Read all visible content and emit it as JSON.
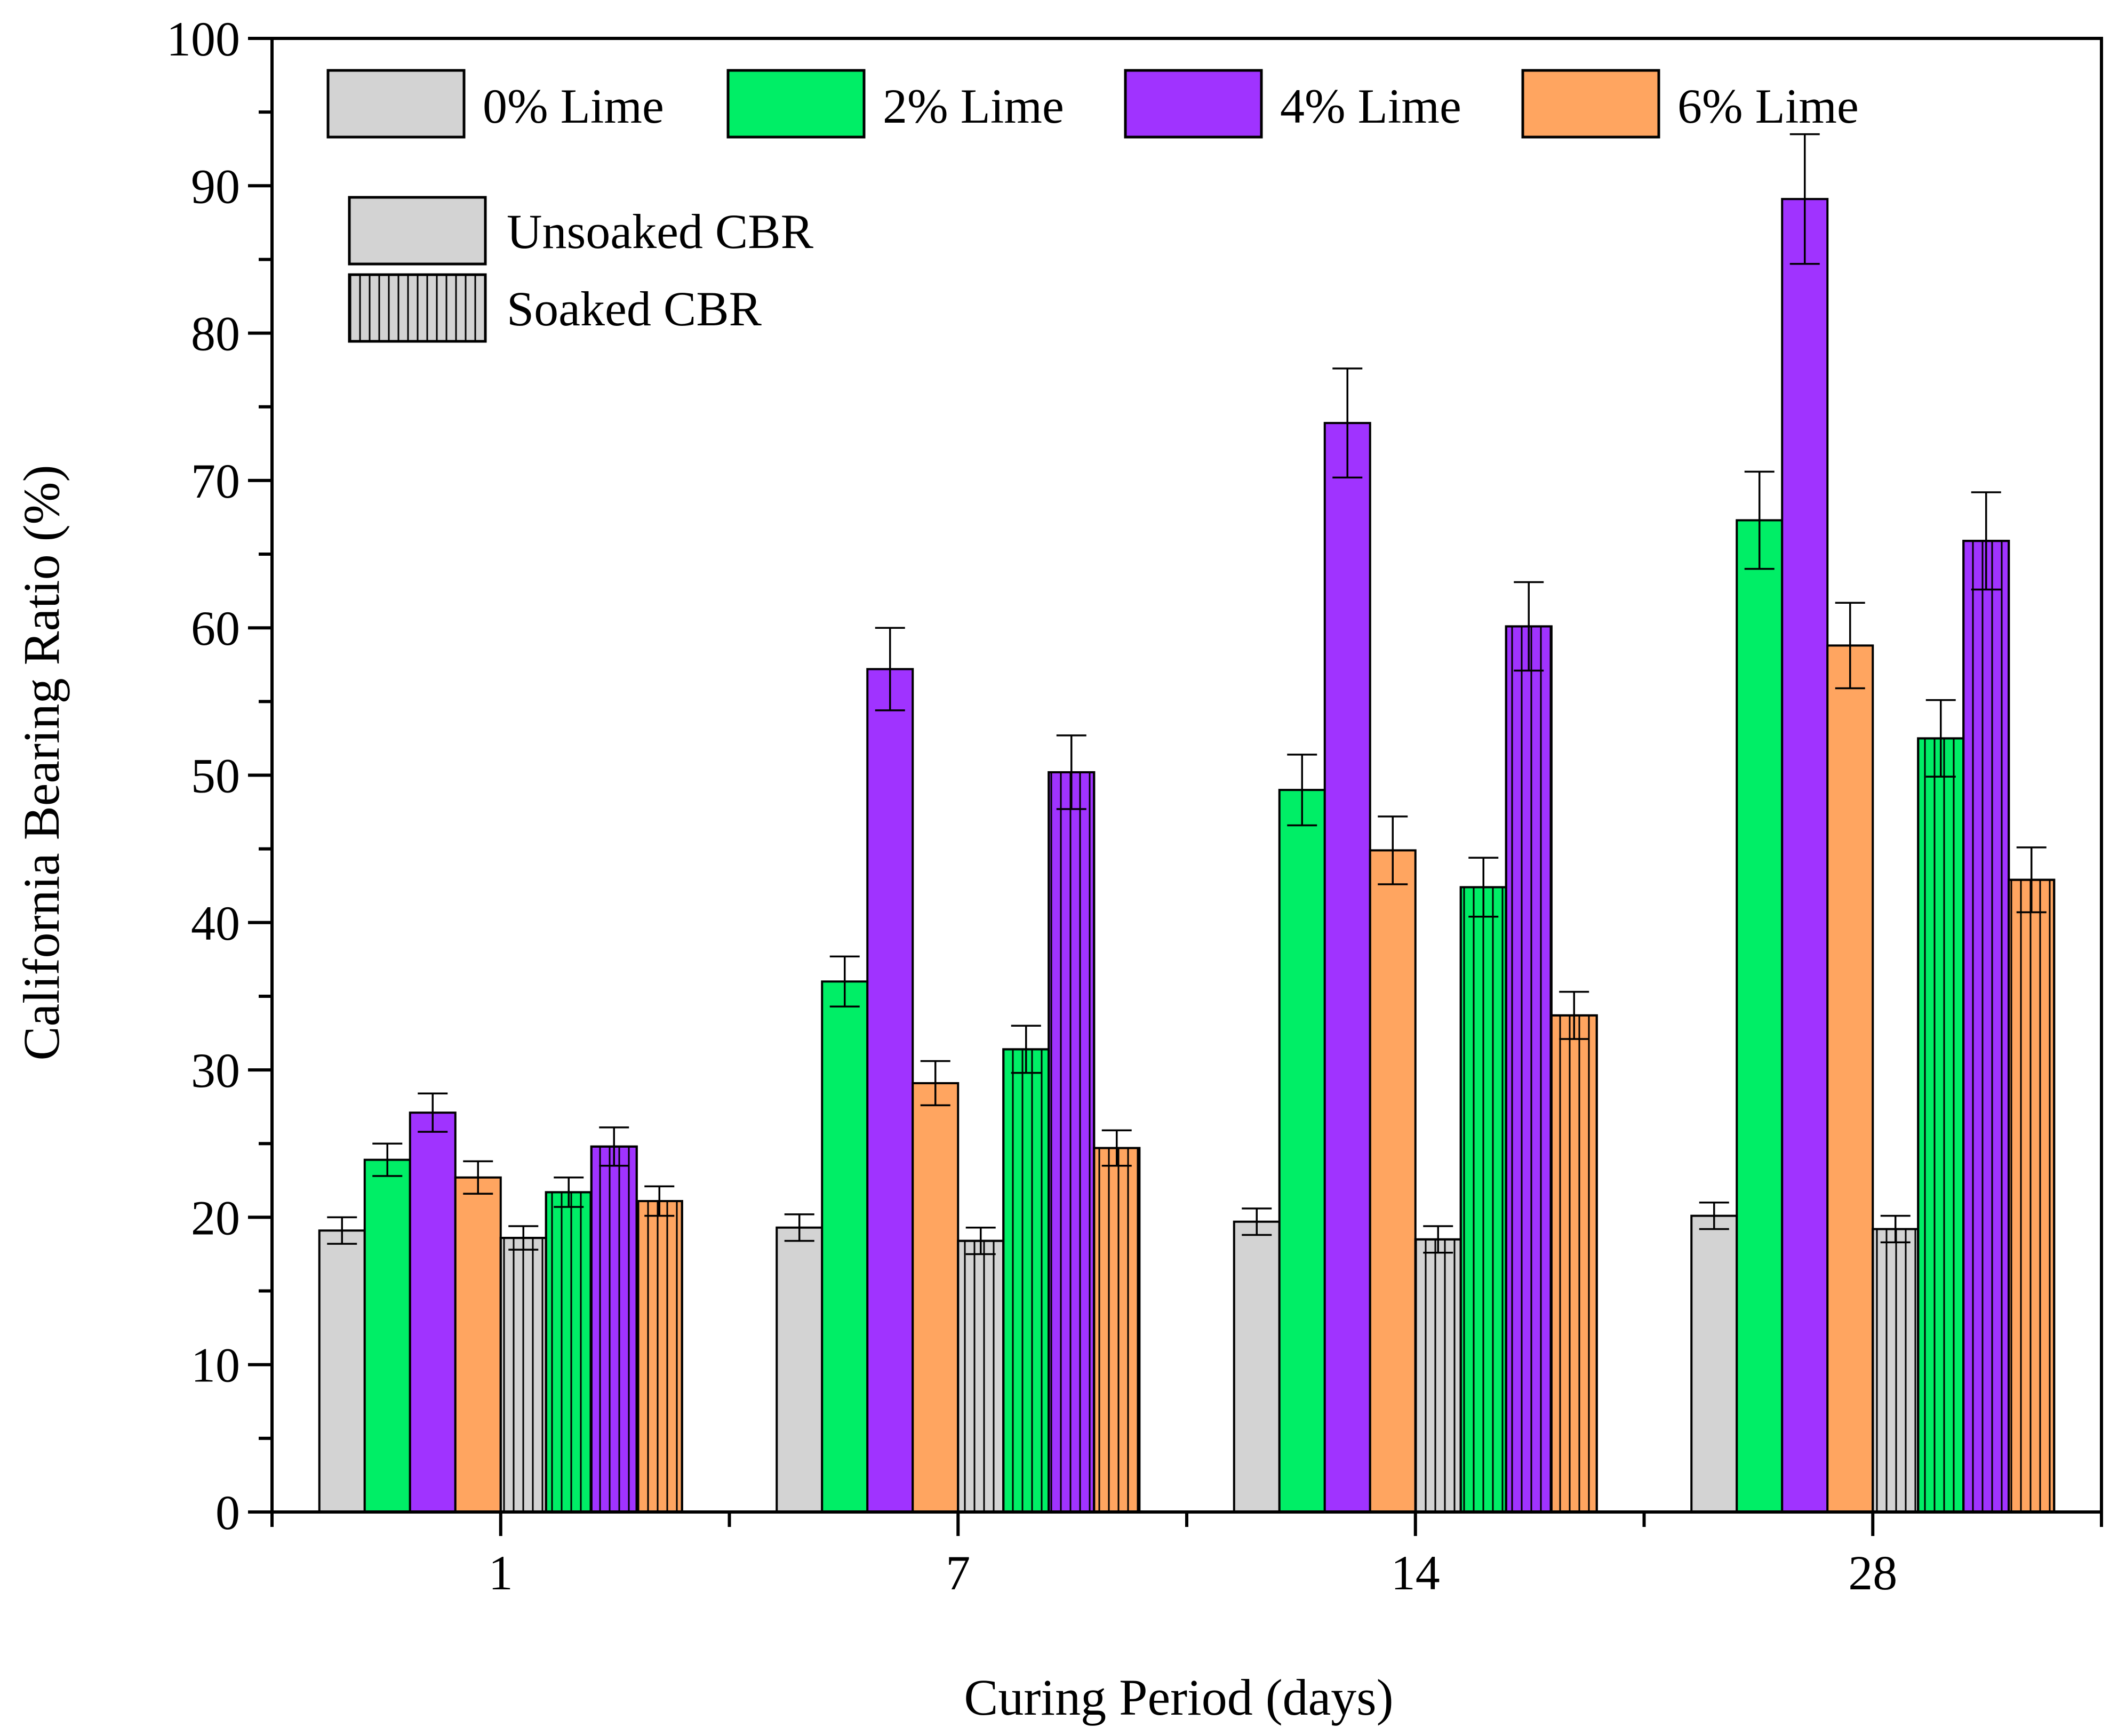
{
  "chart_data": {
    "type": "bar",
    "xlabel": "Curing Period (days)",
    "ylabel": "California Bearing Ratio (%)",
    "ylim": [
      0,
      100
    ],
    "y_ticks": [
      0,
      10,
      20,
      30,
      40,
      50,
      60,
      70,
      80,
      90,
      100
    ],
    "categories": [
      "1",
      "7",
      "14",
      "28"
    ],
    "groups": [
      {
        "name": "Unsoaked CBR",
        "pattern": "solid",
        "series": [
          {
            "name": "0% Lime",
            "color": "#D3D3D3",
            "values": [
              19.1,
              19.3,
              19.7,
              20.1
            ],
            "errors": [
              0.9,
              0.9,
              0.9,
              0.9
            ]
          },
          {
            "name": "2% Lime",
            "color": "#00EE66",
            "values": [
              23.9,
              36.0,
              49.0,
              67.3
            ],
            "errors": [
              1.1,
              1.7,
              2.4,
              3.3
            ]
          },
          {
            "name": "4% Lime",
            "color": "#A033FF",
            "values": [
              27.1,
              57.2,
              73.9,
              89.1
            ],
            "errors": [
              1.3,
              2.8,
              3.7,
              4.4
            ]
          },
          {
            "name": "6% Lime",
            "color": "#FFA560",
            "values": [
              22.7,
              29.1,
              44.9,
              58.8
            ],
            "errors": [
              1.1,
              1.5,
              2.3,
              2.9
            ]
          }
        ]
      },
      {
        "name": "Soaked CBR",
        "pattern": "vertical-lines",
        "series": [
          {
            "name": "0% Lime",
            "color": "#D3D3D3",
            "values": [
              18.6,
              18.4,
              18.5,
              19.2
            ],
            "errors": [
              0.8,
              0.9,
              0.9,
              0.9
            ]
          },
          {
            "name": "2% Lime",
            "color": "#00EE66",
            "values": [
              21.7,
              31.4,
              42.4,
              52.5
            ],
            "errors": [
              1.0,
              1.6,
              2.0,
              2.6
            ]
          },
          {
            "name": "4% Lime",
            "color": "#A033FF",
            "values": [
              24.8,
              50.2,
              60.1,
              65.9
            ],
            "errors": [
              1.3,
              2.5,
              3.0,
              3.3
            ]
          },
          {
            "name": "6% Lime",
            "color": "#FFA560",
            "values": [
              21.1,
              24.7,
              33.7,
              42.9
            ],
            "errors": [
              1.0,
              1.2,
              1.6,
              2.2
            ]
          }
        ]
      }
    ],
    "legend": {
      "series_labels": [
        "0% Lime",
        "2% Lime",
        "4% Lime",
        "6% Lime"
      ],
      "pattern_labels": [
        "Unsoaked CBR",
        "Soaked CBR"
      ]
    }
  }
}
